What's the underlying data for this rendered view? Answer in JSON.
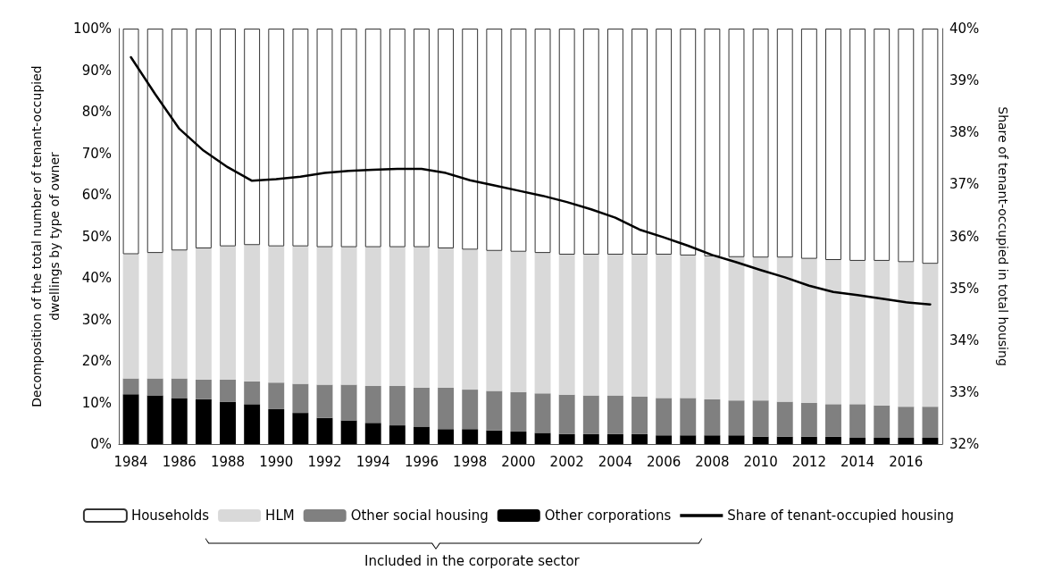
{
  "chart_data": {
    "type": "bar",
    "stacked": true,
    "categories": [
      "1984",
      null,
      "1986",
      null,
      "1988",
      null,
      "1990",
      null,
      "1992",
      null,
      "1994",
      null,
      "1996",
      null,
      "1998",
      null,
      "2000",
      null,
      "2002",
      null,
      "2004",
      null,
      "2006",
      null,
      "2008",
      null,
      "2010",
      null,
      "2012",
      null,
      "2014",
      null,
      "2016",
      null
    ],
    "series": [
      {
        "name": "Other corporations",
        "color": "#000000",
        "values": [
          12.0,
          11.7,
          11.1,
          10.8,
          10.2,
          9.6,
          8.4,
          7.5,
          6.3,
          5.7,
          5.1,
          4.5,
          4.2,
          3.6,
          3.6,
          3.3,
          3.0,
          2.7,
          2.4,
          2.4,
          2.4,
          2.4,
          2.1,
          2.1,
          2.1,
          2.1,
          1.8,
          1.8,
          1.8,
          1.8,
          1.5,
          1.5,
          1.5,
          1.5
        ]
      },
      {
        "name": "Other social housing",
        "color": "#808080",
        "values": [
          3.8,
          4.1,
          4.7,
          4.7,
          5.3,
          5.5,
          6.4,
          7.0,
          8.0,
          8.6,
          8.9,
          9.5,
          9.4,
          10.0,
          9.5,
          9.5,
          9.5,
          9.5,
          9.5,
          9.3,
          9.3,
          9.0,
          9.0,
          9.0,
          8.7,
          8.4,
          8.7,
          8.4,
          8.1,
          7.8,
          8.1,
          7.8,
          7.5,
          7.5
        ]
      },
      {
        "name": "HLM",
        "color": "#d9d9d9",
        "values": [
          29.9,
          30.2,
          30.8,
          31.6,
          32.1,
          32.8,
          32.8,
          33.1,
          33.1,
          33.1,
          33.4,
          33.4,
          33.8,
          33.5,
          33.7,
          33.7,
          33.8,
          33.8,
          33.7,
          33.9,
          33.9,
          34.2,
          34.5,
          34.3,
          34.4,
          34.5,
          34.4,
          34.7,
          34.7,
          34.7,
          34.5,
          34.8,
          34.8,
          34.4
        ]
      },
      {
        "name": "Households",
        "color": "#ffffff",
        "values": [
          54.3,
          54.0,
          53.4,
          52.9,
          52.4,
          52.1,
          52.4,
          52.4,
          52.6,
          52.6,
          52.6,
          52.6,
          52.6,
          52.9,
          53.2,
          53.5,
          53.7,
          54.0,
          54.4,
          54.4,
          54.4,
          54.4,
          54.4,
          54.6,
          54.8,
          55.0,
          55.1,
          55.1,
          55.4,
          55.7,
          55.9,
          55.9,
          56.2,
          56.6
        ]
      },
      {
        "name": "Share of tenant-occupied housing",
        "type": "line",
        "axis": "y2",
        "color": "#000000",
        "values": [
          39.45,
          38.74,
          38.07,
          37.65,
          37.33,
          37.07,
          37.1,
          37.15,
          37.22,
          37.26,
          37.28,
          37.3,
          37.3,
          37.22,
          37.08,
          36.98,
          36.88,
          36.78,
          36.66,
          36.52,
          36.36,
          36.13,
          35.98,
          35.82,
          35.64,
          35.5,
          35.35,
          35.21,
          35.05,
          34.93,
          34.87,
          34.8,
          34.73,
          34.69
        ]
      }
    ],
    "ylabel": "Decomposition of the total number of tenant-occupied dwellings by type of owner",
    "y2label": "Share of tenant-occupied in total housing",
    "ylim": [
      0,
      100
    ],
    "yticks": [
      {
        "value": 0,
        "label": "0%"
      },
      {
        "value": 10,
        "label": "10%"
      },
      {
        "value": 20,
        "label": "20%"
      },
      {
        "value": 30,
        "label": "30%"
      },
      {
        "value": 40,
        "label": "40%"
      },
      {
        "value": 50,
        "label": "50%"
      },
      {
        "value": 60,
        "label": "60%"
      },
      {
        "value": 70,
        "label": "70%"
      },
      {
        "value": 80,
        "label": "80%"
      },
      {
        "value": 90,
        "label": "90%"
      },
      {
        "value": 100,
        "label": "100%"
      }
    ],
    "y2lim": [
      32,
      40
    ],
    "y2ticks": [
      {
        "value": 32,
        "label": "32%"
      },
      {
        "value": 33,
        "label": "33%"
      },
      {
        "value": 34,
        "label": "34%"
      },
      {
        "value": 35,
        "label": "35%"
      },
      {
        "value": 36,
        "label": "36%"
      },
      {
        "value": 37,
        "label": "37%"
      },
      {
        "value": 38,
        "label": "38%"
      },
      {
        "value": 39,
        "label": "39%"
      },
      {
        "value": 40,
        "label": "40%"
      }
    ],
    "grid": false,
    "legend": "bottom",
    "marker": "none",
    "line_style": "solid",
    "annotations": [
      "Included in the corporate sector"
    ]
  }
}
